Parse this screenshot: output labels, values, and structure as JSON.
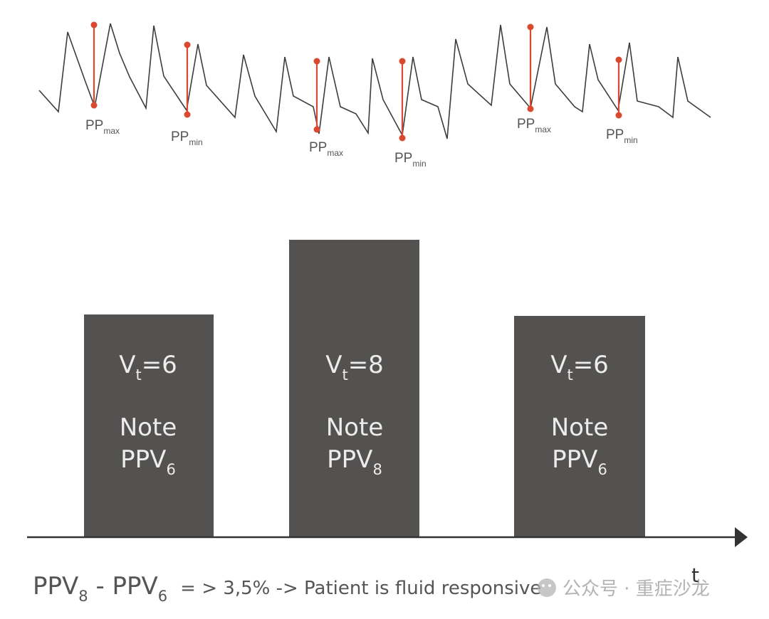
{
  "waveform": {
    "markers": [
      {
        "base": "PP",
        "sub": "max",
        "kind": "max"
      },
      {
        "base": "PP",
        "sub": "min",
        "kind": "min"
      },
      {
        "base": "PP",
        "sub": "max",
        "kind": "max"
      },
      {
        "base": "PP",
        "sub": "min",
        "kind": "min"
      },
      {
        "base": "PP",
        "sub": "max",
        "kind": "max"
      },
      {
        "base": "PP",
        "sub": "min",
        "kind": "min"
      }
    ],
    "line_color": "#3d3d3d",
    "marker_color": "#d9482f"
  },
  "bars": [
    {
      "vt_symbol": "V",
      "vt_sub": "t",
      "vt_value": "=6",
      "note": "Note",
      "ppv_base": "PPV",
      "ppv_sub": "6"
    },
    {
      "vt_symbol": "V",
      "vt_sub": "t",
      "vt_value": "=8",
      "note": "Note",
      "ppv_base": "PPV",
      "ppv_sub": "8"
    },
    {
      "vt_symbol": "V",
      "vt_sub": "t",
      "vt_value": "=6",
      "note": "Note",
      "ppv_base": "PPV",
      "ppv_sub": "6"
    }
  ],
  "bar_color": "#545250",
  "axis": {
    "label": "t",
    "color": "#333333"
  },
  "formula": {
    "term1_base": "PPV",
    "term1_sub": "8",
    "minus": " - ",
    "term2_base": "PPV",
    "term2_sub": "6",
    "rest": "= > 3,5% -> Patient is fluid responsive"
  },
  "watermark": "公众号 · 重症沙龙"
}
